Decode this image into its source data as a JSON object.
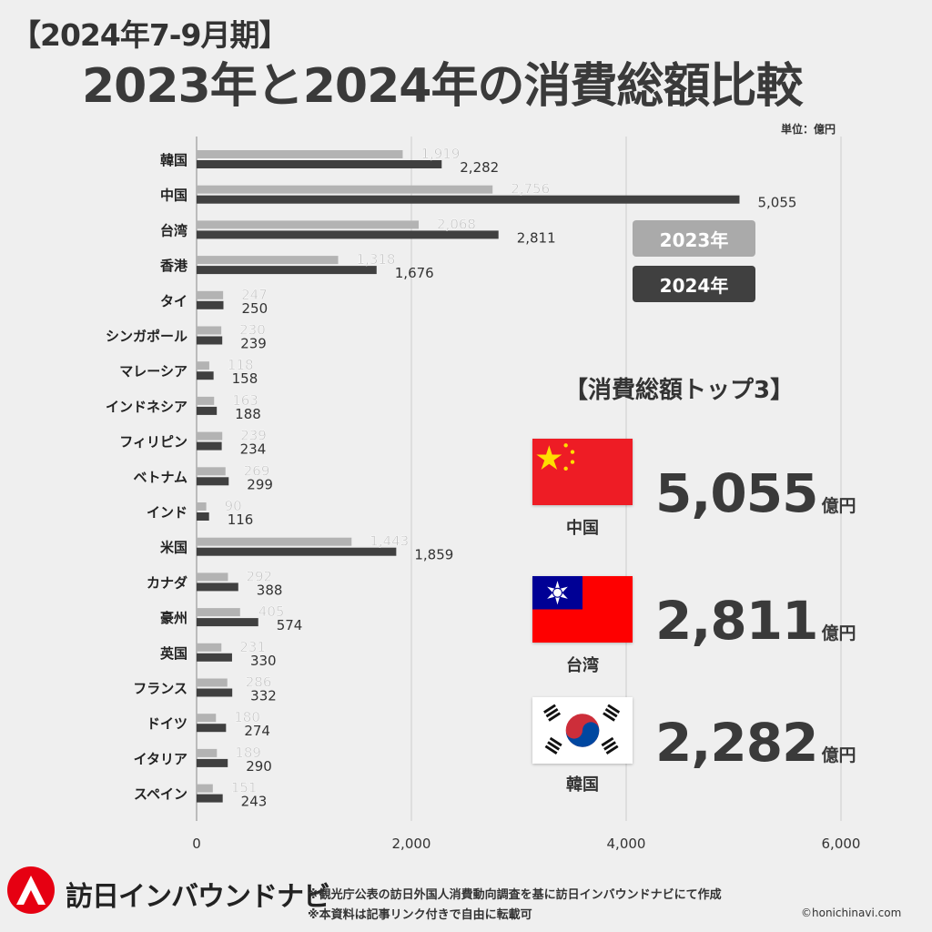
{
  "header": {
    "period": "【2024年7-9月期】",
    "title": "2023年と2024年の消費総額比較",
    "unit": "単位：億円"
  },
  "legend": {
    "y2023": {
      "label": "2023年",
      "color": "#aaaaaa"
    },
    "y2024": {
      "label": "2024年",
      "color": "#404040"
    }
  },
  "top3": {
    "title": "【消費総額トップ3】",
    "items": [
      {
        "country": "中国",
        "amount": "5,055",
        "unit": "億円",
        "flag": "china-flag"
      },
      {
        "country": "台湾",
        "amount": "2,811",
        "unit": "億円",
        "flag": "taiwan-flag"
      },
      {
        "country": "韓国",
        "amount": "2,282",
        "unit": "億円",
        "flag": "korea-flag"
      }
    ]
  },
  "footer": {
    "brand": "訪日インバウンドナビ",
    "note1": "※観光庁公表の訪日外国人消費動向調査を基に訪日インバウンドナビにて作成",
    "note2": "※本資料は記事リンク付きで自由に転載可",
    "copyright": "©honichinavi.com"
  },
  "chart_data": {
    "type": "bar",
    "orientation": "horizontal",
    "categories": [
      "韓国",
      "中国",
      "台湾",
      "香港",
      "タイ",
      "シンガポール",
      "マレーシア",
      "インドネシア",
      "フィリピン",
      "ベトナム",
      "インド",
      "米国",
      "カナダ",
      "豪州",
      "英国",
      "フランス",
      "ドイツ",
      "イタリア",
      "スペイン"
    ],
    "series": [
      {
        "name": "2023年",
        "color": "#b3b3b3",
        "values": [
          1919,
          2756,
          2068,
          1318,
          247,
          230,
          118,
          163,
          239,
          269,
          90,
          1443,
          292,
          405,
          231,
          286,
          180,
          189,
          151
        ]
      },
      {
        "name": "2024年",
        "color": "#404040",
        "values": [
          2282,
          5055,
          2811,
          1676,
          250,
          239,
          158,
          188,
          234,
          299,
          116,
          1859,
          388,
          574,
          330,
          332,
          274,
          290,
          243
        ]
      }
    ],
    "x_ticks": [
      "0",
      "2,000",
      "4,000",
      "6,000"
    ],
    "xlim": [
      0,
      6000
    ],
    "grid": true
  }
}
